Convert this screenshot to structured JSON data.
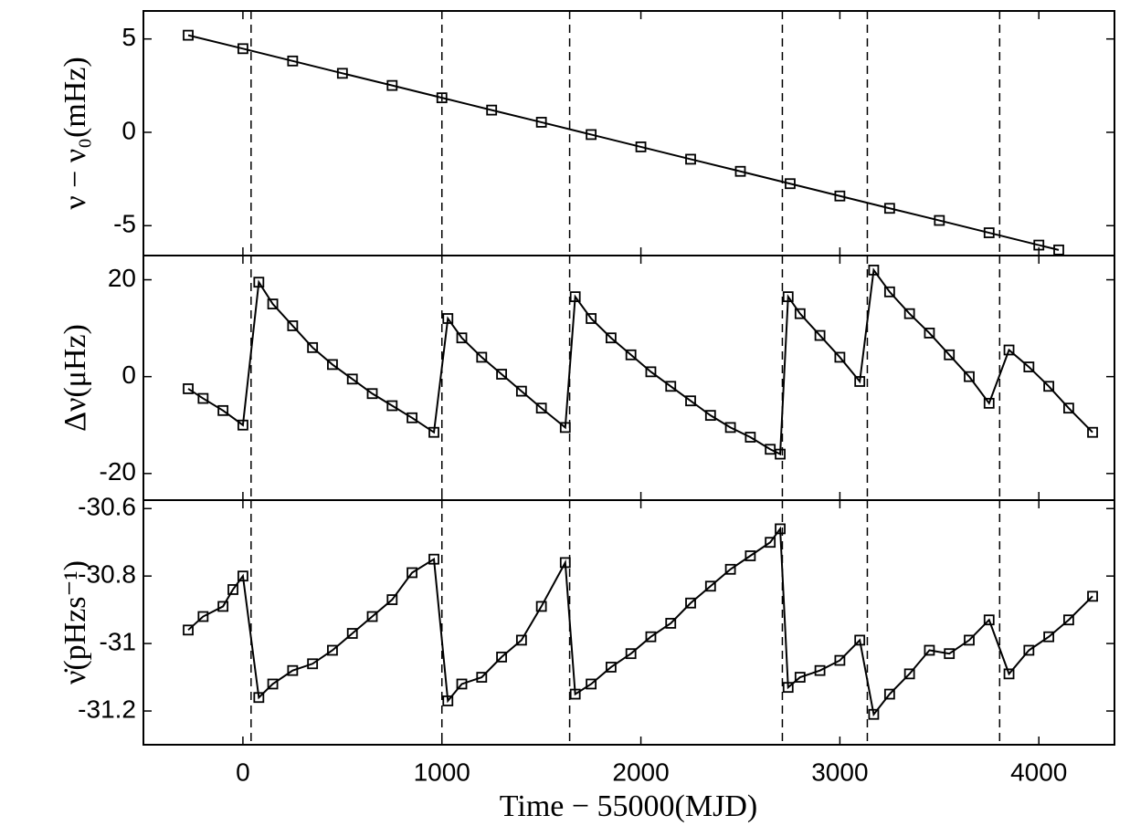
{
  "chart_data": [
    {
      "type": "line",
      "marker": "square",
      "color": "#000000",
      "ylabel": "ν − ν₀(mHz)",
      "xlim": [
        -500,
        4380
      ],
      "xticks": [
        0,
        1000,
        2000,
        3000,
        4000
      ],
      "ylim": [
        -6.6,
        6.5
      ],
      "yticks": [
        -5,
        0,
        5
      ],
      "vlines": [
        41,
        1000,
        1642,
        2711,
        3138,
        3803
      ],
      "x": [
        -275,
        0,
        250,
        500,
        750,
        1000,
        1250,
        1500,
        1750,
        2000,
        2250,
        2500,
        2750,
        3000,
        3250,
        3500,
        3750,
        4000,
        4100
      ],
      "values": [
        5.2,
        4.48,
        3.82,
        3.16,
        2.51,
        1.85,
        1.19,
        0.54,
        -0.12,
        -0.78,
        -1.44,
        -2.09,
        -2.75,
        -3.41,
        -4.07,
        -4.72,
        -5.38,
        -6.04,
        -6.3
      ]
    },
    {
      "type": "line",
      "marker": "square",
      "color": "#000000",
      "ylabel": "Δν(μHz)",
      "xlim": [
        -500,
        4380
      ],
      "xticks": [
        0,
        1000,
        2000,
        3000,
        4000
      ],
      "ylim": [
        -25.5,
        25
      ],
      "yticks": [
        -20,
        0,
        20
      ],
      "vlines": [
        41,
        1000,
        1642,
        2711,
        3138,
        3803
      ],
      "x": [
        -275,
        -200,
        -100,
        0,
        80,
        150,
        250,
        350,
        450,
        550,
        650,
        750,
        850,
        960,
        1030,
        1100,
        1200,
        1300,
        1400,
        1500,
        1620,
        1670,
        1750,
        1850,
        1950,
        2050,
        2150,
        2250,
        2350,
        2450,
        2550,
        2650,
        2700,
        2740,
        2800,
        2900,
        3000,
        3100,
        3170,
        3250,
        3350,
        3450,
        3550,
        3650,
        3750,
        3850,
        3950,
        4050,
        4150,
        4270
      ],
      "values": [
        -2.5,
        -4.5,
        -7,
        -10,
        19.5,
        15,
        10.5,
        6,
        2.5,
        -0.5,
        -3.5,
        -6,
        -8.5,
        -11.5,
        12,
        8,
        4,
        0.5,
        -3,
        -6.5,
        -10.5,
        16.5,
        12,
        8,
        4.5,
        1,
        -2,
        -5,
        -8,
        -10.5,
        -12.5,
        -15,
        -16,
        16.5,
        13,
        8.5,
        4,
        -1,
        22,
        17.5,
        13,
        9,
        4.5,
        0,
        -5.5,
        5.5,
        2,
        -2,
        -6.5,
        -11.5
      ]
    },
    {
      "type": "line",
      "marker": "square",
      "color": "#000000",
      "ylabel": "ν̇(pHzs⁻¹)",
      "xlabel": "Time − 55000(MJD)",
      "xlim": [
        -500,
        4380
      ],
      "xticks": [
        0,
        1000,
        2000,
        3000,
        4000
      ],
      "ylim": [
        -31.3,
        -30.575
      ],
      "yticks": [
        -31.2,
        -31,
        -30.8,
        -30.6
      ],
      "vlines": [
        41,
        1000,
        1642,
        2711,
        3138,
        3803
      ],
      "x": [
        -275,
        -200,
        -100,
        -50,
        0,
        80,
        150,
        250,
        350,
        450,
        550,
        650,
        750,
        850,
        960,
        1030,
        1100,
        1200,
        1300,
        1400,
        1500,
        1620,
        1670,
        1750,
        1850,
        1950,
        2050,
        2150,
        2250,
        2350,
        2450,
        2550,
        2650,
        2700,
        2740,
        2800,
        2900,
        3000,
        3100,
        3170,
        3250,
        3350,
        3450,
        3550,
        3650,
        3750,
        3850,
        3950,
        4050,
        4150,
        4270
      ],
      "values": [
        -30.96,
        -30.92,
        -30.89,
        -30.84,
        -30.8,
        -31.16,
        -31.12,
        -31.08,
        -31.06,
        -31.02,
        -30.97,
        -30.92,
        -30.87,
        -30.79,
        -30.75,
        -31.17,
        -31.12,
        -31.1,
        -31.04,
        -30.99,
        -30.89,
        -30.76,
        -31.15,
        -31.12,
        -31.07,
        -31.03,
        -30.98,
        -30.94,
        -30.88,
        -30.83,
        -30.78,
        -30.74,
        -30.7,
        -30.66,
        -31.13,
        -31.1,
        -31.08,
        -31.05,
        -30.99,
        -31.21,
        -31.15,
        -31.09,
        -31.02,
        -31.03,
        -30.99,
        -30.93,
        -31.09,
        -31.02,
        -30.98,
        -30.93,
        -30.86
      ]
    }
  ]
}
